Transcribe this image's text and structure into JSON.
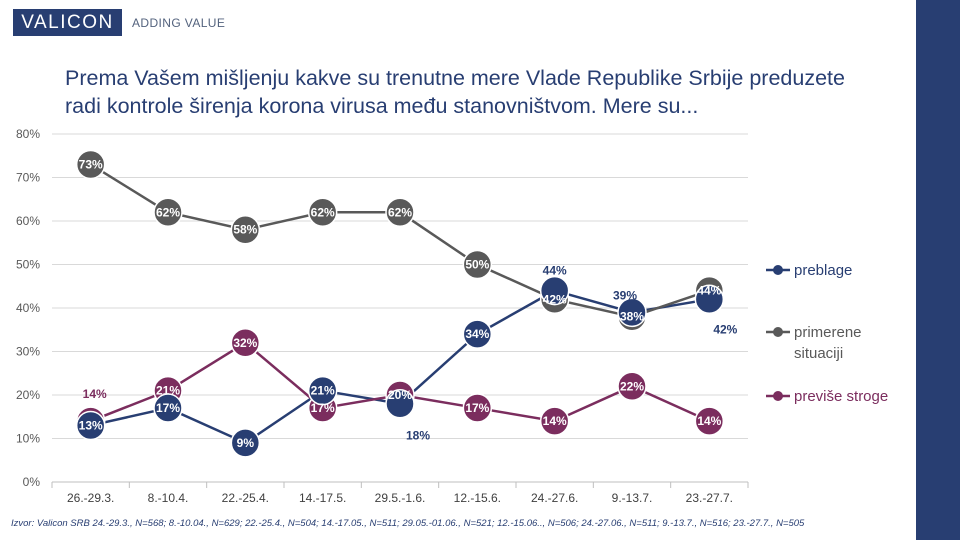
{
  "header": {
    "logo_text": "VALICON",
    "tagline": "ADDING VALUE"
  },
  "title_line1": "Prema Vašem mišljenju kakve su trenutne mere Vlade Republike Srbije preduzete",
  "title_line2": "radi kontrole širenja korona virusa među stanovništvom. Mere su...",
  "source": "Izvor: Valicon SRB 24.-29.3., N=568; 8.-10.04., N=629; 22.-25.4., N=504; 14.-17.05., N=511; 29.05.-01.06., N=521; 12.-15.06.., N=506; 24.-27.06., N=511; 9.-13.7., N=516; 23.-27.7., N=505",
  "colors": {
    "accent_bar": "#283e72"
  },
  "chart_data": {
    "type": "line",
    "categories": [
      "26.-29.3.",
      "8.-10.4.",
      "22.-25.4.",
      "14.-17.5.",
      "29.5.-1.6.",
      "12.-15.6.",
      "24.-27.6.",
      "9.-13.7.",
      "23.-27.7."
    ],
    "ylim": [
      0,
      80
    ],
    "yticks": [
      "0%",
      "10%",
      "20%",
      "30%",
      "40%",
      "50%",
      "60%",
      "70%",
      "80%"
    ],
    "grid": true,
    "legend_position": "right",
    "series": [
      {
        "name": "preblage",
        "color": "#283e72",
        "values": [
          13,
          17,
          9,
          21,
          18,
          34,
          44,
          39,
          42
        ],
        "labels": [
          "13%",
          "17%",
          "9%",
          "21%",
          "18%",
          "34%",
          "44%",
          "39%",
          "42%"
        ]
      },
      {
        "name": "primerene situaciji",
        "color": "#595959",
        "values": [
          73,
          62,
          58,
          62,
          62,
          50,
          42,
          38,
          44
        ],
        "labels": [
          "73%",
          "62%",
          "58%",
          "62%",
          "62%",
          "50%",
          "42%",
          "38%",
          "44%"
        ]
      },
      {
        "name": "previše stroge",
        "color": "#7b2d5e",
        "values": [
          14,
          21,
          32,
          17,
          20,
          17,
          14,
          22,
          14
        ],
        "labels": [
          "14%",
          "21%",
          "32%",
          "17%",
          "20%",
          "17%",
          "14%",
          "22%",
          "14%"
        ]
      }
    ]
  }
}
